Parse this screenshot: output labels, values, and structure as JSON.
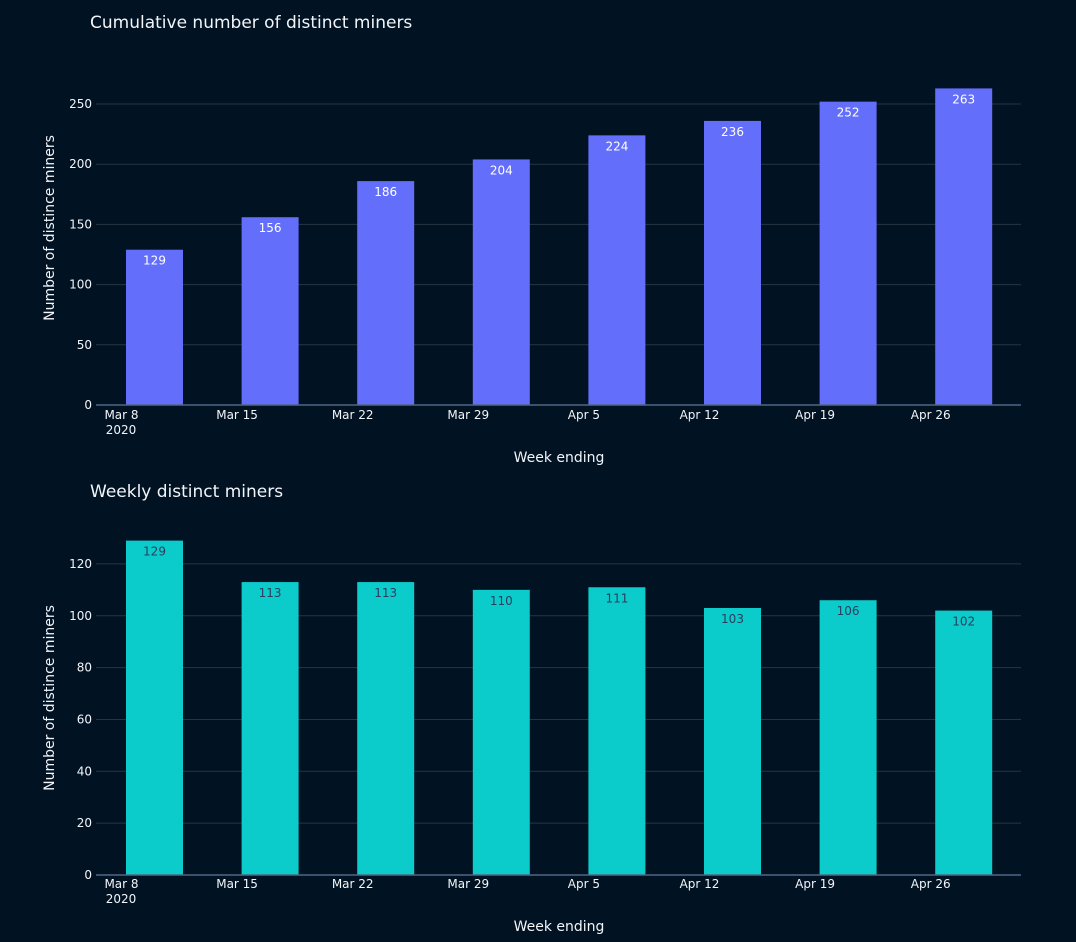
{
  "chart_data": [
    {
      "type": "bar",
      "title": "Cumulative number of distinct miners",
      "xlabel": "Week ending",
      "ylabel": "Number of distince miners",
      "categories": [
        "Mar 8",
        "Mar 15",
        "Mar 22",
        "Mar 29",
        "Apr 5",
        "Apr 12",
        "Apr 19",
        "Apr 26"
      ],
      "year_label": "2020",
      "values": [
        129,
        156,
        186,
        204,
        224,
        236,
        252,
        263
      ],
      "ylim": [
        0,
        265
      ],
      "yticks": [
        0,
        50,
        100,
        150,
        200,
        250
      ],
      "grid": true,
      "bar_color": "#636efa",
      "label_color": "#ffffff"
    },
    {
      "type": "bar",
      "title": "Weekly distinct miners",
      "xlabel": "Week ending",
      "ylabel": "Number of distince miners",
      "categories": [
        "Mar 8",
        "Mar 15",
        "Mar 22",
        "Mar 29",
        "Apr 5",
        "Apr 12",
        "Apr 19",
        "Apr 26"
      ],
      "year_label": "2020",
      "values": [
        129,
        113,
        113,
        110,
        111,
        103,
        106,
        102
      ],
      "ylim": [
        0,
        130
      ],
      "yticks": [
        0,
        20,
        40,
        60,
        80,
        100,
        120
      ],
      "grid": true,
      "bar_color": "#0bcbcb",
      "label_color": "#2a3f5f"
    }
  ]
}
